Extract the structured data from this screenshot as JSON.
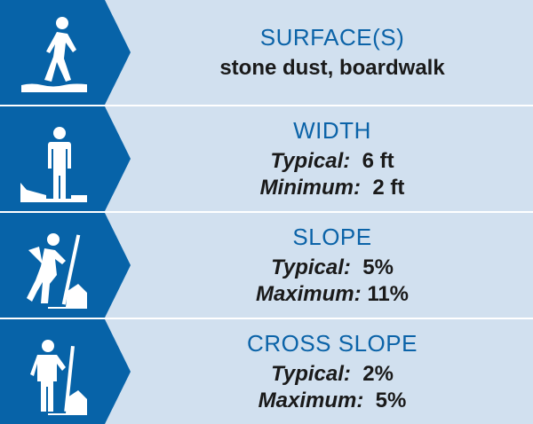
{
  "colors": {
    "panel": "#0763a8",
    "background": "#d1e0ef",
    "title": "#0b63a8"
  },
  "rows": [
    {
      "icon": "walking-on-surface-icon",
      "title": "SURFACE(S)",
      "lines": [
        {
          "label": "",
          "value": "stone dust, boardwalk"
        }
      ]
    },
    {
      "icon": "standing-width-icon",
      "title": "WIDTH",
      "lines": [
        {
          "label": "Typical:",
          "value": "6 ft"
        },
        {
          "label": "Minimum:",
          "value": "2 ft"
        }
      ]
    },
    {
      "icon": "hiker-uphill-slope-icon",
      "title": "SLOPE",
      "lines": [
        {
          "label": "Typical:",
          "value": "5%"
        },
        {
          "label": "Maximum:",
          "value": "11%"
        }
      ]
    },
    {
      "icon": "hiker-cross-slope-icon",
      "title": "CROSS SLOPE",
      "lines": [
        {
          "label": "Typical:",
          "value": "2%"
        },
        {
          "label": "Maximum:",
          "value": "5%"
        }
      ]
    }
  ]
}
